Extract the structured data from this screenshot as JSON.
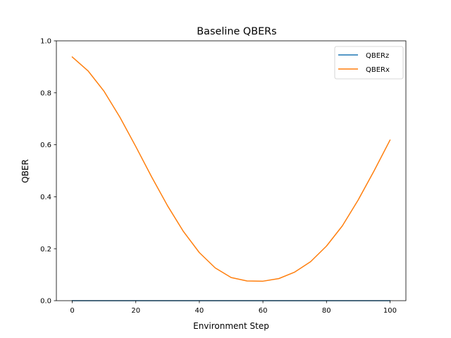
{
  "chart_data": {
    "type": "line",
    "title": "Baseline QBERs",
    "xlabel": "Environment Step",
    "ylabel": "QBER",
    "xlim": [
      -5,
      105
    ],
    "ylim": [
      0.0,
      1.0
    ],
    "xticks": [
      0,
      20,
      40,
      60,
      80,
      100
    ],
    "yticks": [
      0.0,
      0.2,
      0.4,
      0.6,
      0.8,
      1.0
    ],
    "xtick_labels": [
      "0",
      "20",
      "40",
      "60",
      "80",
      "100"
    ],
    "ytick_labels": [
      "0.0",
      "0.2",
      "0.4",
      "0.6",
      "0.8",
      "1.0"
    ],
    "grid": false,
    "legend_position": "top-right",
    "x": [
      0,
      5,
      10,
      15,
      20,
      25,
      30,
      35,
      40,
      45,
      50,
      55,
      60,
      65,
      70,
      75,
      80,
      85,
      90,
      95,
      100
    ],
    "series": [
      {
        "name": "QBERz",
        "color": "#1f77b4",
        "values": [
          0.0,
          0.0,
          0.0,
          0.0,
          0.0,
          0.0,
          0.0,
          0.0,
          0.0,
          0.0,
          0.0,
          0.0,
          0.0,
          0.0,
          0.0,
          0.0,
          0.0,
          0.0,
          0.0,
          0.0,
          0.0
        ]
      },
      {
        "name": "QBERx",
        "color": "#ff7f0e",
        "values": [
          0.938,
          0.884,
          0.806,
          0.706,
          0.593,
          0.476,
          0.365,
          0.266,
          0.185,
          0.126,
          0.089,
          0.076,
          0.075,
          0.085,
          0.11,
          0.15,
          0.21,
          0.288,
          0.388,
          0.5,
          0.618
        ]
      }
    ]
  }
}
